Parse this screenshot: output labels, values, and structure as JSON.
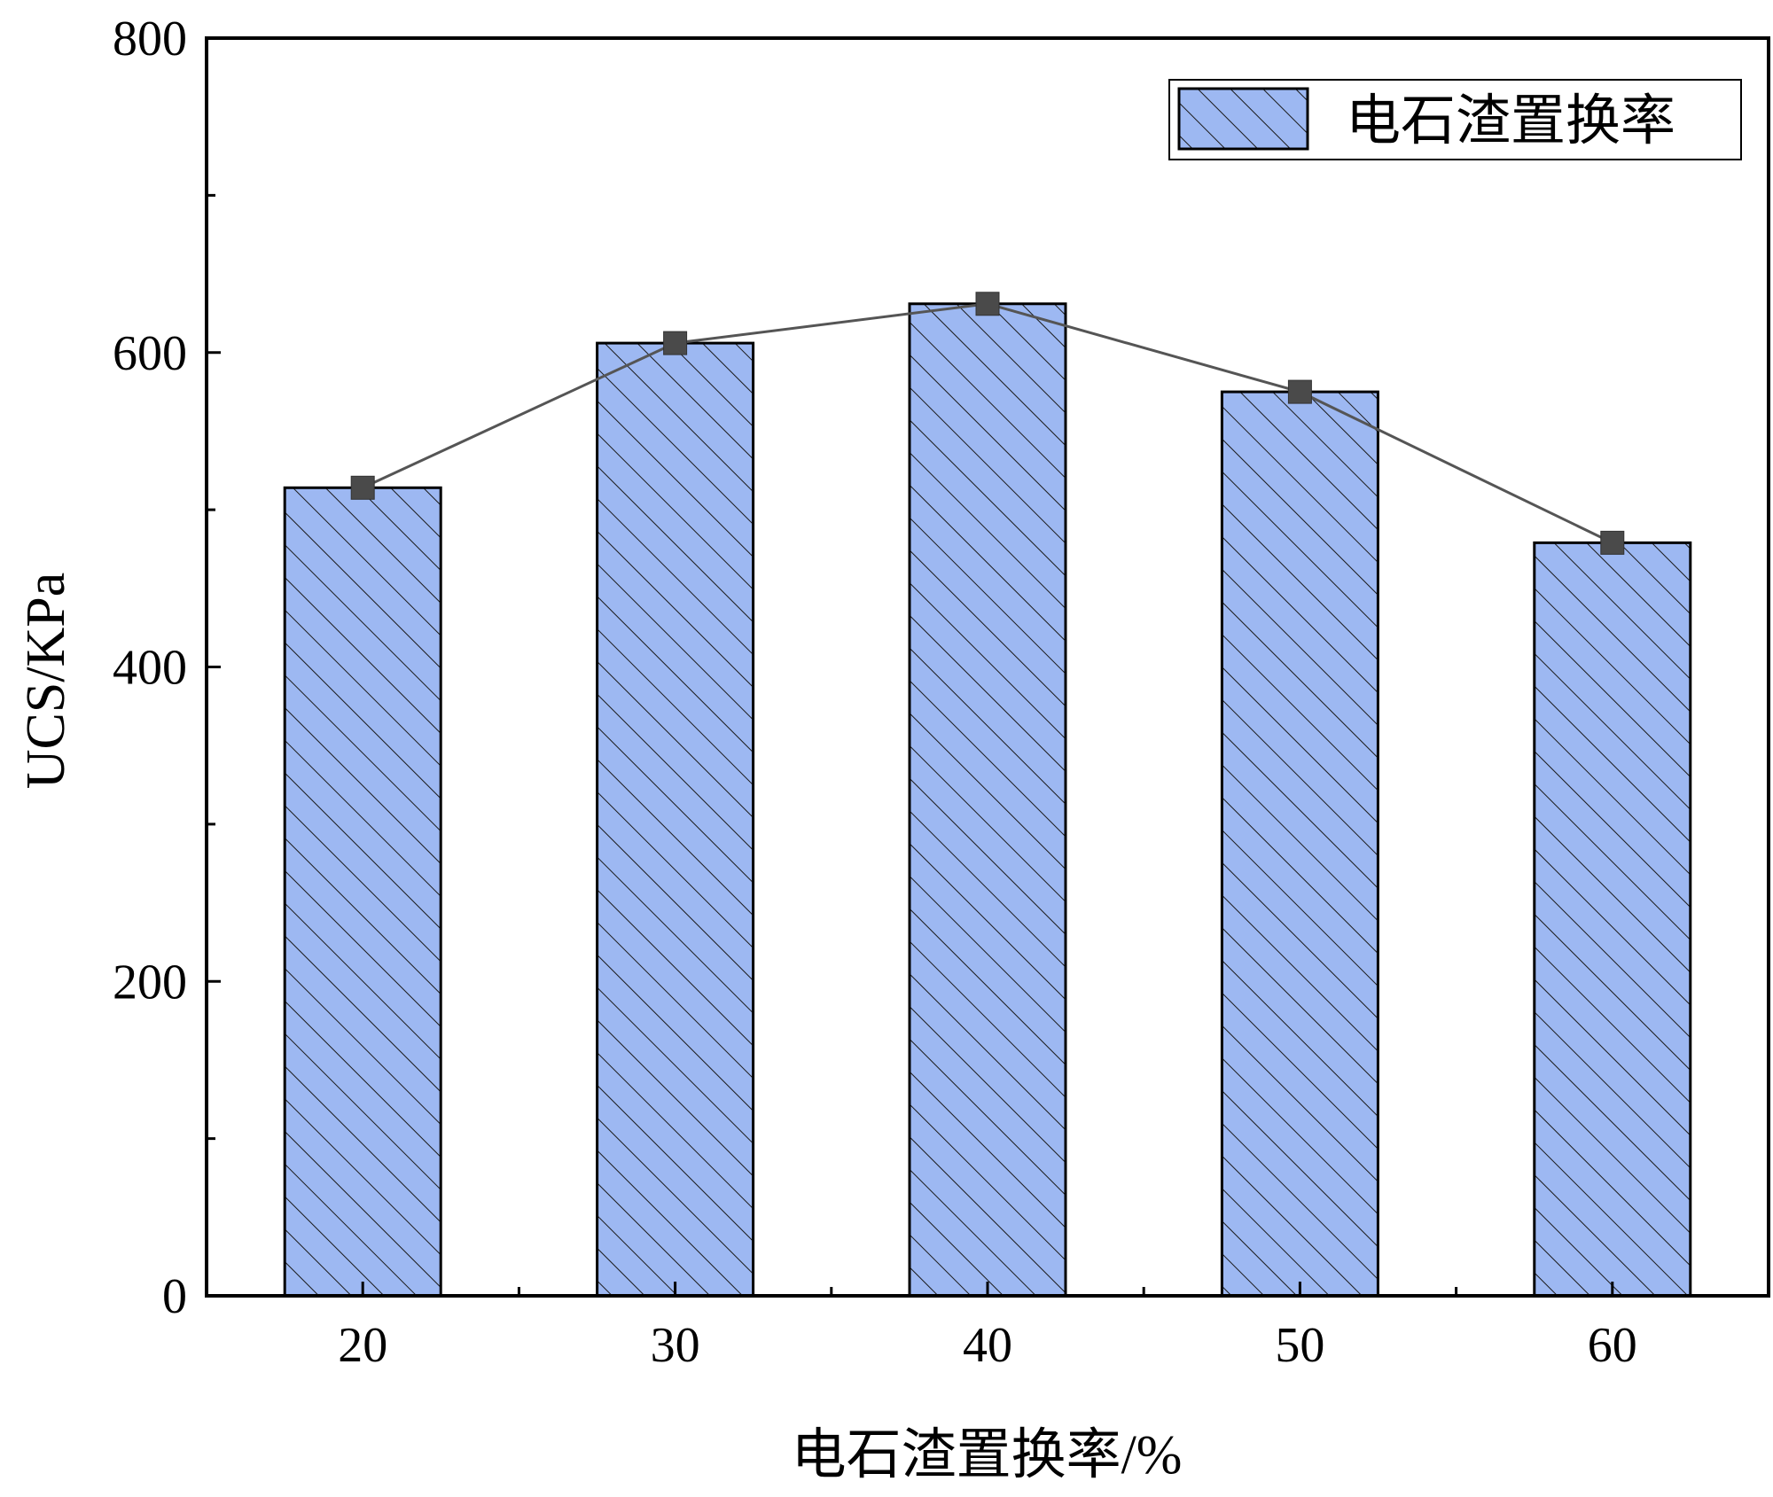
{
  "chart_data": {
    "type": "bar",
    "categories": [
      "20",
      "30",
      "40",
      "50",
      "60"
    ],
    "series": [
      {
        "name": "电石渣置换率",
        "values": [
          514,
          606,
          631,
          575,
          479
        ]
      }
    ],
    "line_overlay": {
      "values": [
        514,
        606,
        631,
        575,
        479
      ],
      "marker": "square"
    },
    "title": "",
    "xlabel": "电石渣置换率/%",
    "ylabel": "UCS/KPa",
    "ylim": [
      0,
      800
    ],
    "yticks": [
      "0",
      "200",
      "400",
      "600",
      "800"
    ],
    "grid": false,
    "legend_position": "top-right"
  },
  "colors": {
    "bar_fill": "#9db8f2",
    "bar_hatch": "#1a1a1a",
    "bar_edge": "#000000",
    "line": "#555555",
    "marker": "#4a4a4a",
    "axis": "#000000"
  }
}
